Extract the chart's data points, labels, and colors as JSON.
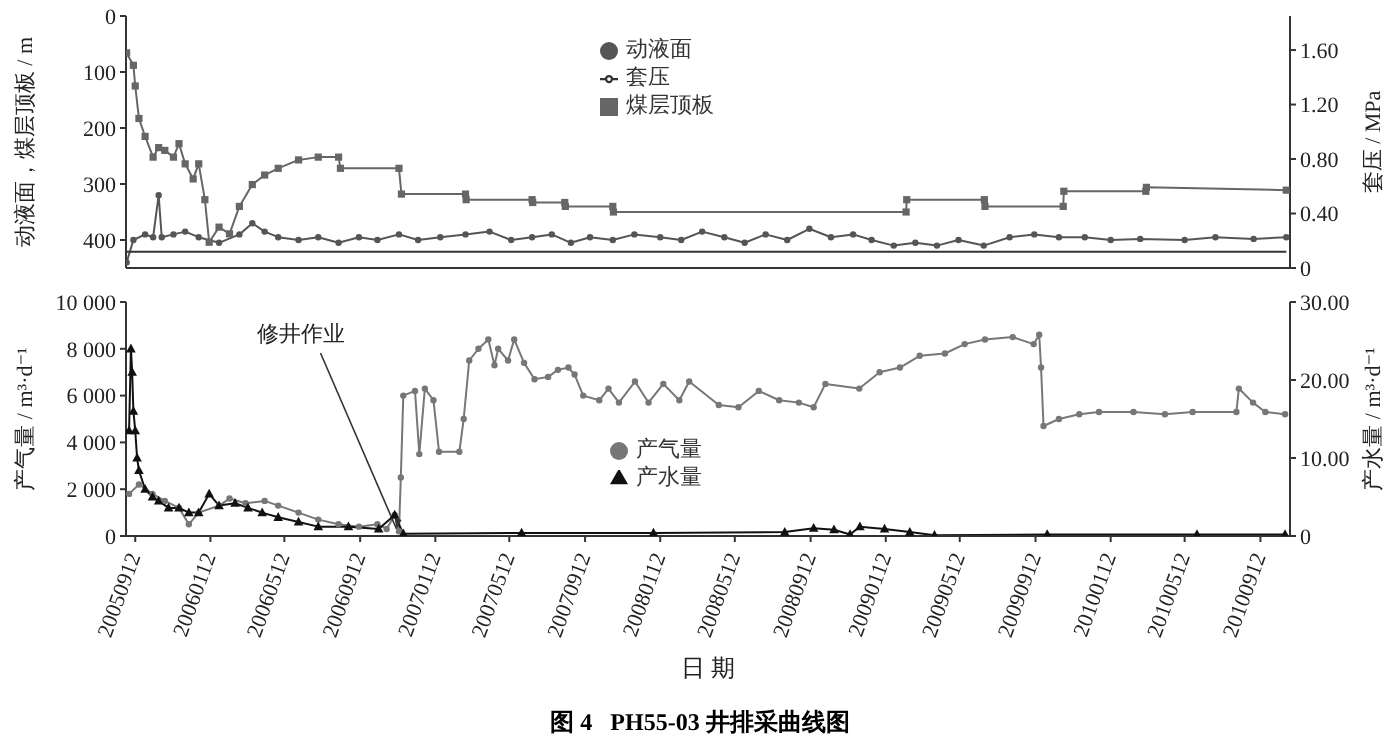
{
  "chart_data": [
    {
      "type": "line",
      "ylabel": "动液面，煤层顶板 / m",
      "y2label": "套压 / MPa",
      "legend": "top",
      "tick_labels": "y",
      "xlim": [
        "2005-08-28",
        "2010-10-30"
      ],
      "ylim": [
        450,
        0
      ],
      "yticks": [
        0,
        100,
        200,
        300,
        400
      ],
      "y2lim": [
        0,
        1.85
      ],
      "y2ticks": [
        0,
        {
          "value": 0.4,
          "label": "0.40"
        },
        {
          "value": 0.8,
          "label": "0.80"
        },
        {
          "value": 1.2,
          "label": "1.20"
        },
        {
          "value": 1.6,
          "label": "1.60"
        }
      ],
      "series": [
        {
          "name": "动液面",
          "color": "#555555",
          "marker": "circle",
          "x": [
            "2005-08-29",
            "2005-09-09",
            "2005-09-28",
            "2005-10-11",
            "2005-10-20",
            "2005-10-25",
            "2005-11-13",
            "2005-12-02",
            "2005-12-24",
            "2006-01-26",
            "2006-02-28",
            "2006-03-21",
            "2006-04-10",
            "2006-05-02",
            "2006-06-04",
            "2006-07-06",
            "2006-08-08",
            "2006-09-10",
            "2006-10-10",
            "2006-11-14",
            "2006-12-15",
            "2007-01-20",
            "2007-03-02",
            "2007-04-10",
            "2007-05-15",
            "2007-06-18",
            "2007-07-20",
            "2007-08-20",
            "2007-09-20",
            "2007-10-27",
            "2007-12-01",
            "2008-01-12",
            "2008-02-15",
            "2008-03-20",
            "2008-04-25",
            "2008-05-28",
            "2008-07-01",
            "2008-08-05",
            "2008-09-10",
            "2008-10-15",
            "2008-11-20",
            "2008-12-20",
            "2009-01-25",
            "2009-03-01",
            "2009-04-05",
            "2009-05-10",
            "2009-06-20",
            "2009-08-01",
            "2009-09-10",
            "2009-10-20",
            "2009-12-01",
            "2010-01-12",
            "2010-03-01",
            "2010-05-12",
            "2010-07-01",
            "2010-09-01",
            "2010-10-24"
          ],
          "values": [
            440,
            400,
            390,
            395,
            320,
            395,
            390,
            385,
            395,
            405,
            390,
            370,
            385,
            395,
            400,
            395,
            405,
            395,
            400,
            390,
            400,
            395,
            390,
            385,
            400,
            395,
            390,
            405,
            395,
            400,
            390,
            395,
            400,
            385,
            395,
            405,
            390,
            400,
            380,
            395,
            390,
            400,
            410,
            405,
            410,
            400,
            410,
            395,
            390,
            395,
            395,
            400,
            398,
            400,
            395,
            398,
            395
          ]
        },
        {
          "name": "煤层顶板",
          "color": "#666666",
          "marker": "square",
          "x": [
            "2005-08-29",
            "2005-09-09",
            "2005-09-12",
            "2005-09-18",
            "2005-09-28",
            "2005-10-11",
            "2005-10-20",
            "2005-10-30",
            "2005-11-13",
            "2005-11-22",
            "2005-12-02",
            "2005-12-15",
            "2005-12-24",
            "2006-01-03",
            "2006-01-10",
            "2006-01-26",
            "2006-02-12",
            "2006-02-28",
            "2006-03-21",
            "2006-04-10",
            "2006-05-02",
            "2006-06-04",
            "2006-07-06",
            "2006-08-08",
            "2006-08-11",
            "2006-11-14",
            "2006-11-18",
            "2007-03-02",
            "2007-03-03",
            "2007-06-18",
            "2007-06-19",
            "2007-08-10",
            "2007-08-11",
            "2007-10-27",
            "2007-10-28",
            "2009-02-14",
            "2009-02-15",
            "2009-06-21",
            "2009-06-22",
            "2009-10-27",
            "2009-10-28",
            "2010-03-10",
            "2010-03-11",
            "2010-10-24"
          ],
          "values": [
            66,
            88,
            125,
            183,
            215,
            252,
            235,
            240,
            252,
            228,
            264,
            291,
            264,
            328,
            404,
            377,
            389,
            340,
            301,
            284,
            272,
            257,
            252,
            252,
            272,
            272,
            318,
            318,
            328,
            328,
            333,
            333,
            340,
            340,
            350,
            350,
            328,
            328,
            340,
            340,
            313,
            313,
            306,
            311
          ]
        },
        {
          "name": "套压",
          "color": "#333333",
          "marker": "none",
          "axis": "y2",
          "x": [
            "2005-08-29",
            "2010-10-24"
          ],
          "values": [
            0.12,
            0.12
          ]
        }
      ]
    },
    {
      "type": "line",
      "ylabel": "产气量 / m³·d⁻¹",
      "y2label": "产水量 / m³·d⁻¹",
      "xlabel": "日 期",
      "title": "图 4   PH55-03 井排采曲线图",
      "legend": "bottom",
      "xlim": [
        "2005-08-28",
        "2010-10-30"
      ],
      "ylim": [
        0,
        10000
      ],
      "yticks": [
        0,
        {
          "value": 2000,
          "label": "2 000"
        },
        {
          "value": 4000,
          "label": "4 000"
        },
        {
          "value": 6000,
          "label": "6 000"
        },
        {
          "value": 8000,
          "label": "8 000"
        },
        {
          "value": 10000,
          "label": "10 000"
        }
      ],
      "y2lim": [
        0,
        30
      ],
      "y2ticks": [
        0,
        {
          "value": 10,
          "label": "10.00"
        },
        {
          "value": 20,
          "label": "20.00"
        },
        {
          "value": 30,
          "label": "30.00"
        }
      ],
      "xticks": [
        {
          "value": "2005-09-12",
          "label": "20050912"
        },
        {
          "value": "2006-01-12",
          "label": "20060112"
        },
        {
          "value": "2006-05-12",
          "label": "20060512"
        },
        {
          "value": "2006-09-12",
          "label": "20060912"
        },
        {
          "value": "2007-01-12",
          "label": "20070112"
        },
        {
          "value": "2007-05-12",
          "label": "20070512"
        },
        {
          "value": "2007-09-12",
          "label": "20070912"
        },
        {
          "value": "2008-01-12",
          "label": "20080112"
        },
        {
          "value": "2008-05-12",
          "label": "20080512"
        },
        {
          "value": "2008-09-12",
          "label": "20080912"
        },
        {
          "value": "2009-01-12",
          "label": "20090112"
        },
        {
          "value": "2009-05-12",
          "label": "20090512"
        },
        {
          "value": "2009-09-12",
          "label": "20090912"
        },
        {
          "value": "2010-01-12",
          "label": "20100112"
        },
        {
          "value": "2010-05-12",
          "label": "20100512"
        },
        {
          "value": "2010-09-12",
          "label": "20100912"
        }
      ],
      "annotations": [
        {
          "text": "修井作业",
          "x": "2006-11-10",
          "y": 300
        }
      ],
      "series": [
        {
          "name": "产气量",
          "color": "#777777",
          "marker": "circle",
          "x": [
            "2005-09-02",
            "2005-09-18",
            "2005-10-10",
            "2005-10-30",
            "2005-11-22",
            "2005-12-08",
            "2005-12-24",
            "2006-01-26",
            "2006-02-12",
            "2006-03-10",
            "2006-04-10",
            "2006-05-02",
            "2006-06-04",
            "2006-07-06",
            "2006-08-08",
            "2006-09-10",
            "2006-10-10",
            "2006-10-25",
            "2006-11-07",
            "2006-11-14",
            "2006-11-17",
            "2006-11-21",
            "2006-12-10",
            "2006-12-17",
            "2006-12-26",
            "2007-01-09",
            "2007-01-18",
            "2007-02-20",
            "2007-02-27",
            "2007-03-08",
            "2007-03-23",
            "2007-04-08",
            "2007-04-18",
            "2007-04-24",
            "2007-05-10",
            "2007-05-20",
            "2007-06-05",
            "2007-06-22",
            "2007-07-14",
            "2007-07-30",
            "2007-08-16",
            "2007-08-26",
            "2007-09-09",
            "2007-10-05",
            "2007-10-20",
            "2007-11-06",
            "2007-12-02",
            "2007-12-24",
            "2008-01-17",
            "2008-02-12",
            "2008-02-28",
            "2008-04-16",
            "2008-05-18",
            "2008-06-20",
            "2008-07-23",
            "2008-08-24",
            "2008-09-17",
            "2008-10-06",
            "2008-11-30",
            "2009-01-02",
            "2009-02-04",
            "2009-03-08",
            "2009-04-18",
            "2009-05-20",
            "2009-06-22",
            "2009-08-06",
            "2009-09-09",
            "2009-09-18",
            "2009-09-21",
            "2009-09-25",
            "2009-10-20",
            "2009-11-22",
            "2009-12-24",
            "2010-02-18",
            "2010-04-10",
            "2010-05-25",
            "2010-08-04",
            "2010-08-08",
            "2010-08-31",
            "2010-09-20",
            "2010-10-22"
          ],
          "values": [
            1800,
            2200,
            1800,
            1500,
            1200,
            500,
            1000,
            1300,
            1600,
            1400,
            1500,
            1300,
            1000,
            700,
            500,
            400,
            500,
            300,
            900,
            200,
            2500,
            6000,
            6200,
            3500,
            6300,
            5800,
            3600,
            3600,
            5000,
            7500,
            8000,
            8400,
            7300,
            8000,
            7500,
            8400,
            7400,
            6700,
            6800,
            7100,
            7200,
            6900,
            6000,
            5800,
            6300,
            5700,
            6600,
            5700,
            6500,
            5800,
            6600,
            5600,
            5500,
            6200,
            5800,
            5700,
            5500,
            6500,
            6300,
            7000,
            7200,
            7700,
            7800,
            8200,
            8400,
            8500,
            8200,
            8600,
            7200,
            4700,
            5000,
            5200,
            5300,
            5300,
            5200,
            5300,
            5300,
            6300,
            5700,
            5300,
            5200
          ]
        },
        {
          "name": "产水量",
          "color": "#111111",
          "marker": "triangle",
          "axis": "y2",
          "x": [
            "2005-09-02",
            "2005-09-05",
            "2005-09-07",
            "2005-09-09",
            "2005-09-12",
            "2005-09-15",
            "2005-09-18",
            "2005-09-28",
            "2005-10-10",
            "2005-10-20",
            "2005-11-05",
            "2005-11-22",
            "2005-12-08",
            "2005-12-24",
            "2006-01-10",
            "2006-01-26",
            "2006-02-21",
            "2006-03-14",
            "2006-04-06",
            "2006-05-02",
            "2006-06-04",
            "2006-07-06",
            "2006-08-24",
            "2006-10-12",
            "2006-11-07",
            "2006-11-21",
            "2007-06-01",
            "2008-01-01",
            "2008-08-01",
            "2008-09-17",
            "2008-10-20",
            "2008-11-15",
            "2008-12-01",
            "2009-01-10",
            "2009-02-20",
            "2009-04-01",
            "2009-10-01",
            "2010-06-01",
            "2010-10-22"
          ],
          "values": [
            13.5,
            24,
            21,
            16,
            13.5,
            10,
            8.4,
            6,
            5,
            4.5,
            3.6,
            3.6,
            3,
            3,
            5.4,
            3.9,
            4.2,
            3.6,
            3,
            2.4,
            1.8,
            1.2,
            1.2,
            0.9,
            2.7,
            0.3,
            0.4,
            0.4,
            0.5,
            1,
            0.8,
            0.2,
            1.2,
            0.9,
            0.5,
            0.1,
            0.2,
            0.2,
            0.2
          ]
        }
      ]
    }
  ]
}
